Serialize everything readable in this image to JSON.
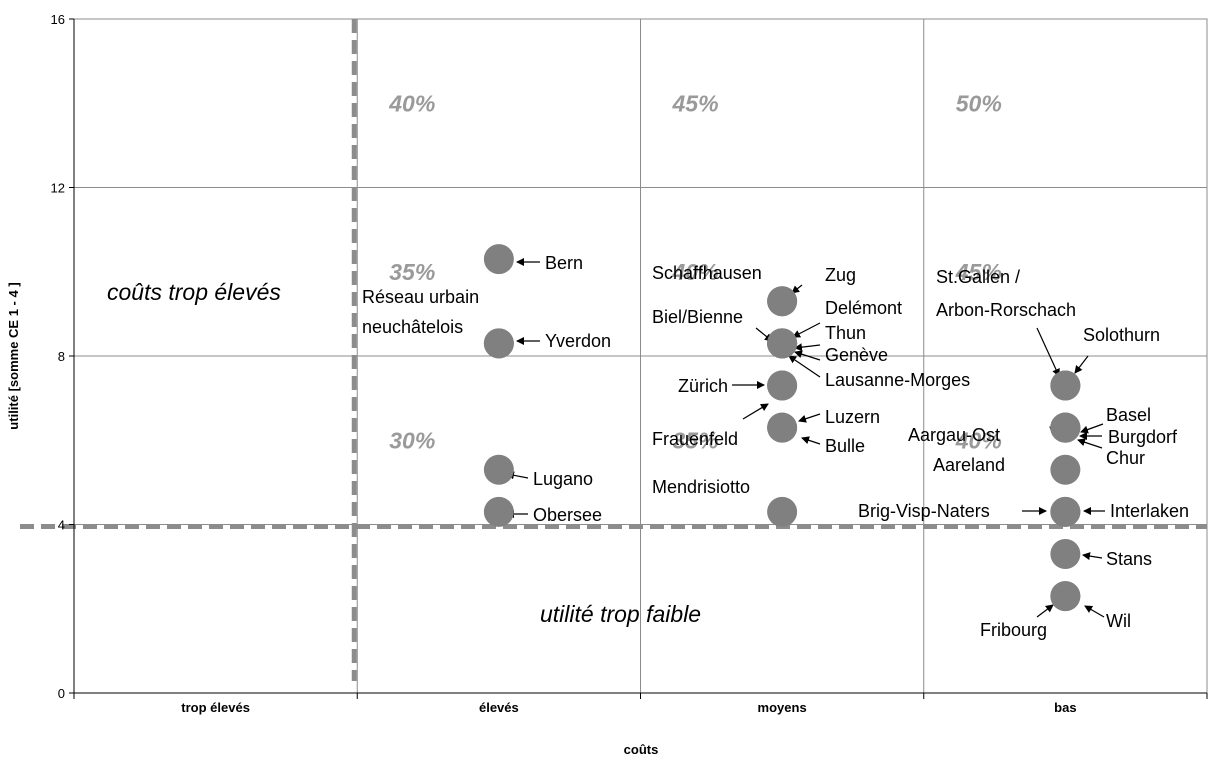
{
  "chart_data": {
    "type": "scatter",
    "xlabel": "coûts",
    "ylabel": "utilité [somme CE 1 - 4 ]",
    "categories": [
      "trop élevés",
      "élevés",
      "moyens",
      "bas"
    ],
    "ylim": [
      0,
      16
    ],
    "yticks": [
      "0",
      "4",
      "8",
      "12",
      "16"
    ],
    "grid": true,
    "threshold_cost": "trop élevés",
    "threshold_utility": 4,
    "points": [
      {
        "label": "Bern",
        "category": "élevés",
        "y": 10.3
      },
      {
        "label": "Réseau urbain neuchâtelois",
        "category": "élevés",
        "y": 8.3
      },
      {
        "label": "Yverdon",
        "category": "élevés",
        "y": 8.3
      },
      {
        "label": "Lugano",
        "category": "élevés",
        "y": 5.3
      },
      {
        "label": "Obersee",
        "category": "élevés",
        "y": 4.3
      },
      {
        "label": "Zug",
        "category": "moyens",
        "y": 9.3
      },
      {
        "label": "Schaffhausen",
        "category": "moyens",
        "y": 9.3
      },
      {
        "label": "Delémont",
        "category": "moyens",
        "y": 8.3
      },
      {
        "label": "Thun",
        "category": "moyens",
        "y": 8.3
      },
      {
        "label": "Genève",
        "category": "moyens",
        "y": 8.3
      },
      {
        "label": "Biel/Bienne",
        "category": "moyens",
        "y": 8.3
      },
      {
        "label": "Lausanne-Morges",
        "category": "moyens",
        "y": 8.3
      },
      {
        "label": "Zürich",
        "category": "moyens",
        "y": 7.3
      },
      {
        "label": "Frauenfeld",
        "category": "moyens",
        "y": 7.3
      },
      {
        "label": "Luzern",
        "category": "moyens",
        "y": 6.3
      },
      {
        "label": "Bulle",
        "category": "moyens",
        "y": 6.3
      },
      {
        "label": "Mendrisiotto",
        "category": "moyens",
        "y": 4.3
      },
      {
        "label": "St.Gallen / Arbon-Rorschach",
        "category": "bas",
        "y": 7.3
      },
      {
        "label": "Solothurn",
        "category": "bas",
        "y": 7.3
      },
      {
        "label": "Basel",
        "category": "bas",
        "y": 6.3
      },
      {
        "label": "Aargau-Ost",
        "category": "bas",
        "y": 6.3
      },
      {
        "label": "Burgdorf",
        "category": "bas",
        "y": 6.3
      },
      {
        "label": "Chur",
        "category": "bas",
        "y": 6.3
      },
      {
        "label": "Aareland",
        "category": "bas",
        "y": 5.3
      },
      {
        "label": "Brig-Visp-Naters",
        "category": "bas",
        "y": 4.3
      },
      {
        "label": "Interlaken",
        "category": "bas",
        "y": 4.3
      },
      {
        "label": "Stans",
        "category": "bas",
        "y": 3.3
      },
      {
        "label": "Fribourg",
        "category": "bas",
        "y": 2.3
      },
      {
        "label": "Wil",
        "category": "bas",
        "y": 2.3
      }
    ],
    "point_labels": [
      {
        "text": "Bern"
      },
      {
        "text": "Réseau urbain"
      },
      {
        "text": "neuchâtelois"
      },
      {
        "text": "Yverdon"
      },
      {
        "text": "Lugano"
      },
      {
        "text": "Obersee"
      },
      {
        "text": "Schaffhausen"
      },
      {
        "text": "Zug"
      },
      {
        "text": "Delémont"
      },
      {
        "text": "Biel/Bienne"
      },
      {
        "text": "Thun"
      },
      {
        "text": "Genève"
      },
      {
        "text": "Lausanne-Morges"
      },
      {
        "text": "Zürich"
      },
      {
        "text": "Luzern"
      },
      {
        "text": "Frauenfeld"
      },
      {
        "text": "Bulle"
      },
      {
        "text": "Mendrisiotto"
      },
      {
        "text": "St.Gallen /"
      },
      {
        "text": "Arbon-Rorschach"
      },
      {
        "text": "Solothurn"
      },
      {
        "text": "Basel"
      },
      {
        "text": "Aargau-Ost"
      },
      {
        "text": "Burgdorf"
      },
      {
        "text": "Chur"
      },
      {
        "text": "Aareland"
      },
      {
        "text": "Brig-Visp-Naters"
      },
      {
        "text": "Interlaken"
      },
      {
        "text": "Stans"
      },
      {
        "text": "Fribourg"
      },
      {
        "text": "Wil"
      }
    ],
    "zone_percentages": [
      {
        "category": "élevés",
        "y": 14,
        "text": "40%"
      },
      {
        "category": "moyens",
        "y": 14,
        "text": "45%"
      },
      {
        "category": "bas",
        "y": 14,
        "text": "50%"
      },
      {
        "category": "élevés",
        "y": 10,
        "text": "35%"
      },
      {
        "category": "moyens",
        "y": 10,
        "text": "40%"
      },
      {
        "category": "bas",
        "y": 10,
        "text": "45%"
      },
      {
        "category": "élevés",
        "y": 6,
        "text": "30%"
      },
      {
        "category": "moyens",
        "y": 6,
        "text": "35%"
      },
      {
        "category": "bas",
        "y": 6,
        "text": "40%"
      }
    ],
    "annotations": {
      "cost_too_high": "coûts trop élevés",
      "utility_too_low": "utilité trop faible"
    },
    "colors": {
      "marker": "#808080",
      "grid": "#8c8c8c",
      "threshold": "#8c8c8c",
      "percentage": "#9a9a9a"
    }
  }
}
